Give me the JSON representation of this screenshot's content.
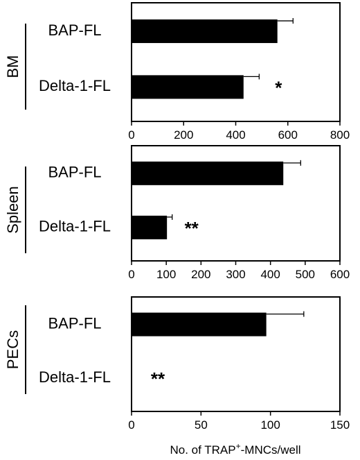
{
  "chart_data": [
    {
      "type": "bar",
      "orientation": "horizontal",
      "group_label": "BM",
      "categories": [
        "BAP-FL",
        "Delta-1-FL"
      ],
      "values": [
        560,
        430
      ],
      "errors": [
        60,
        60
      ],
      "annotations": [
        "",
        "*"
      ],
      "xlim": [
        0,
        800
      ],
      "xticks": [
        0,
        200,
        400,
        600,
        800
      ],
      "grid": false
    },
    {
      "type": "bar",
      "orientation": "horizontal",
      "group_label": "Spleen",
      "categories": [
        "BAP-FL",
        "Delta-1-FL"
      ],
      "values": [
        437,
        102
      ],
      "errors": [
        50,
        15
      ],
      "annotations": [
        "",
        "**"
      ],
      "xlim": [
        0,
        600
      ],
      "xticks": [
        0,
        100,
        200,
        300,
        400,
        500,
        600
      ],
      "grid": false
    },
    {
      "type": "bar",
      "orientation": "horizontal",
      "group_label": "PECs",
      "categories": [
        "BAP-FL",
        "Delta-1-FL"
      ],
      "values": [
        97,
        0
      ],
      "errors": [
        27,
        0
      ],
      "annotations": [
        "",
        "**"
      ],
      "xlim": [
        0,
        150
      ],
      "xticks": [
        0,
        50,
        100,
        150
      ],
      "grid": false
    }
  ],
  "xlabel_parts": [
    "No. of TRAP",
    "+",
    "-MNCs/well"
  ],
  "colors": {
    "bar": "#000000",
    "axis": "#000000"
  }
}
